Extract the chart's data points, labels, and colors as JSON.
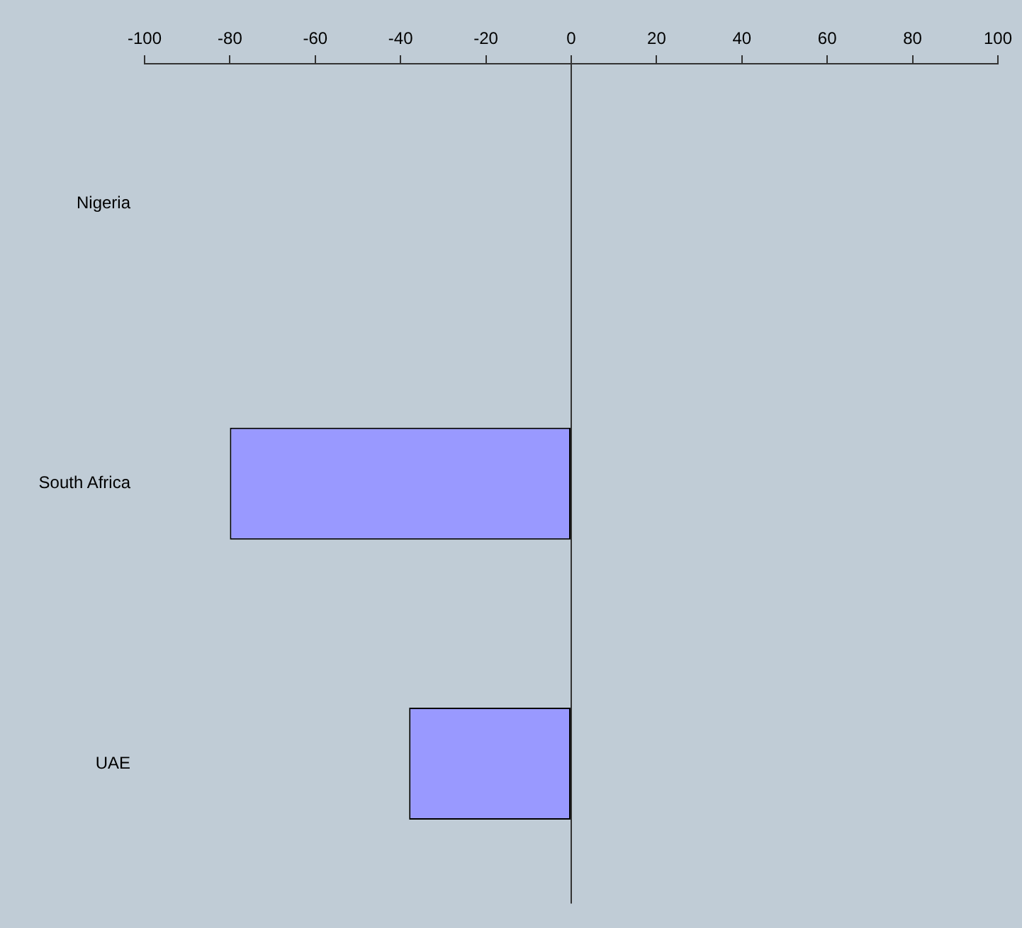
{
  "chart_data": {
    "type": "bar",
    "orientation": "horizontal",
    "categories": [
      "Nigeria",
      "South Africa",
      "UAE"
    ],
    "values": [
      null,
      -80,
      -38
    ],
    "color": "#9999ff",
    "xlim": [
      -100,
      100
    ],
    "xticks": [
      -100,
      -80,
      -60,
      -40,
      -20,
      0,
      20,
      40,
      60,
      80,
      100
    ],
    "legend": false
  }
}
